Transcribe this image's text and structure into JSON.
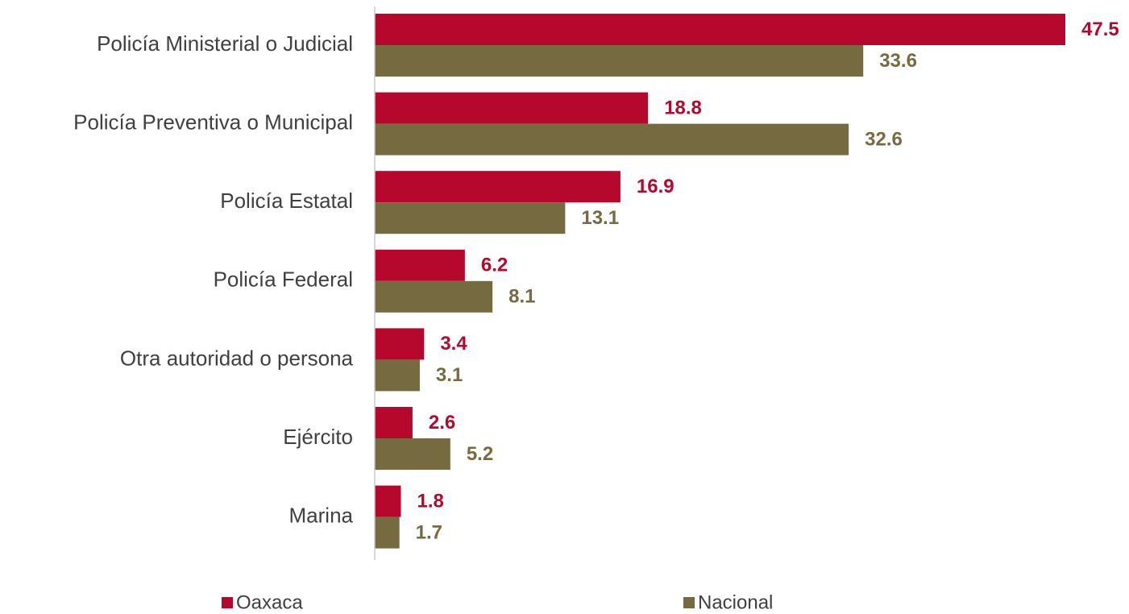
{
  "chart_data": {
    "type": "barh",
    "categories": [
      "Policía Ministerial o Judicial",
      "Policía Preventiva o Municipal",
      "Policía Estatal",
      "Policía Federal",
      "Otra autoridad o persona",
      "Ejército",
      "Marina"
    ],
    "series": [
      {
        "name": "Oaxaca",
        "color": "#b5082c",
        "values": [
          47.5,
          18.8,
          16.9,
          6.2,
          3.4,
          2.6,
          1.8
        ]
      },
      {
        "name": "Nacional",
        "color": "#766a40",
        "values": [
          33.6,
          32.6,
          13.1,
          8.1,
          3.1,
          5.2,
          1.7
        ]
      }
    ]
  }
}
